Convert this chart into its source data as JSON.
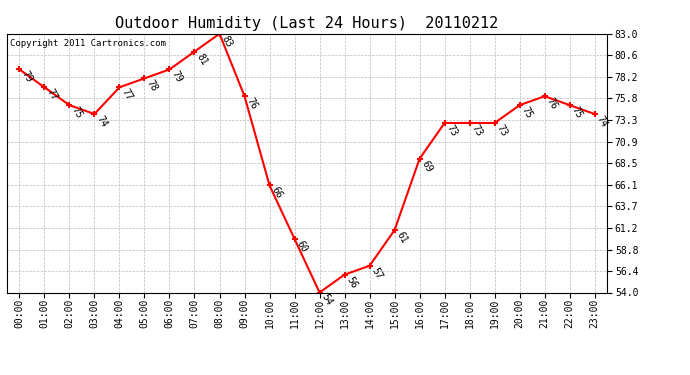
{
  "title": "Outdoor Humidity (Last 24 Hours)  20110212",
  "copyright_text": "Copyright 2011 Cartronics.com",
  "hours": [
    0,
    1,
    2,
    3,
    4,
    5,
    6,
    7,
    8,
    9,
    10,
    11,
    12,
    13,
    14,
    15,
    16,
    17,
    18,
    19,
    20,
    21,
    22,
    23
  ],
  "values": [
    79,
    77,
    75,
    74,
    77,
    78,
    79,
    81,
    83,
    76,
    66,
    60,
    54,
    56,
    57,
    61,
    69,
    73,
    73,
    73,
    75,
    76,
    75,
    74
  ],
  "x_labels": [
    "00:00",
    "01:00",
    "02:00",
    "03:00",
    "04:00",
    "05:00",
    "06:00",
    "07:00",
    "08:00",
    "09:00",
    "10:00",
    "11:00",
    "12:00",
    "13:00",
    "14:00",
    "15:00",
    "16:00",
    "17:00",
    "18:00",
    "19:00",
    "20:00",
    "21:00",
    "22:00",
    "23:00"
  ],
  "y_min": 54.0,
  "y_max": 83.0,
  "y_ticks": [
    54.0,
    56.4,
    58.8,
    61.2,
    63.7,
    66.1,
    68.5,
    70.9,
    73.3,
    75.8,
    78.2,
    80.6,
    83.0
  ],
  "line_color": "red",
  "marker_color": "red",
  "bg_color": "white",
  "plot_bg_color": "white",
  "grid_color": "#bbbbbb",
  "title_fontsize": 11,
  "tick_fontsize": 7,
  "label_fontsize": 7,
  "copyright_fontsize": 6.5
}
